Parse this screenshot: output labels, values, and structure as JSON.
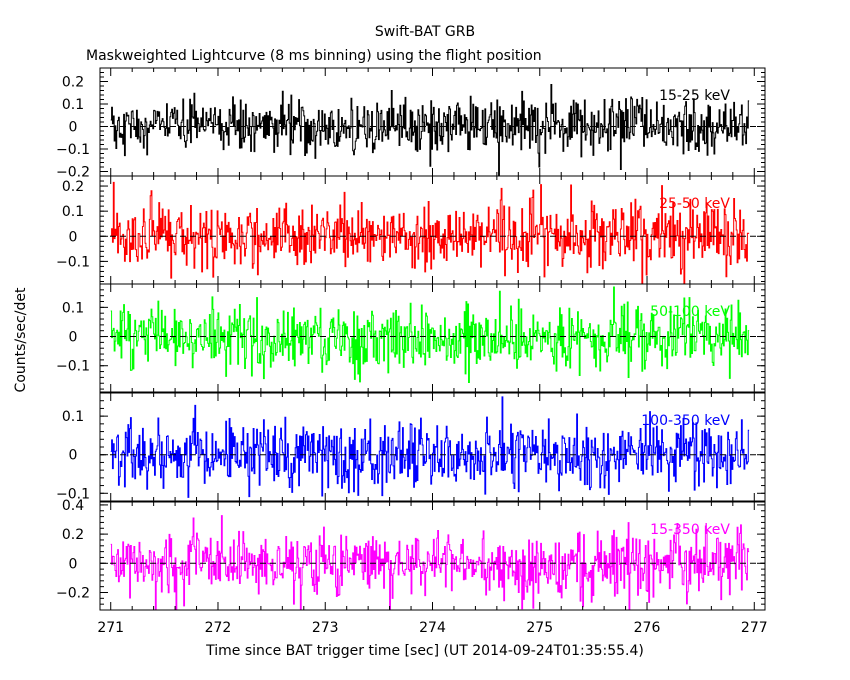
{
  "title": "Swift-BAT GRB",
  "subtitle": "Maskweighted Lightcurve (8 ms binning) using the flight position",
  "ylabel": "Counts/sec/det",
  "xlabel": "Time since BAT trigger time [sec] (UT 2014-09-24T01:35:55.4)",
  "chart_data": {
    "type": "line",
    "title": "Swift-BAT GRB",
    "subtitle": "Maskweighted Lightcurve (8 ms binning) using the flight position",
    "xlabel": "Time since BAT trigger time [sec] (UT 2014-09-24T01:35:55.4)",
    "ylabel": "Counts/sec/det",
    "xlim": [
      270.9,
      277.1
    ],
    "xticks": [
      271,
      272,
      273,
      274,
      275,
      276,
      277
    ],
    "x_start": 271.0,
    "x_end": 276.95,
    "bin_size": 0.008,
    "grid": false,
    "panels": [
      {
        "name": "15-25 keV",
        "color": "#000000",
        "ylim": [
          -0.22,
          0.26
        ],
        "yticks": [
          -0.2,
          -0.1,
          0,
          0.1,
          0.2
        ],
        "ytick_labels": [
          "−0.2",
          "−0.1",
          "0",
          "0.1",
          "0.2"
        ],
        "noise_sigma": 0.06,
        "zero_line": true
      },
      {
        "name": "25-50 keV",
        "color": "#ff0000",
        "ylim": [
          -0.19,
          0.24
        ],
        "yticks": [
          -0.1,
          0,
          0.1,
          0.2
        ],
        "ytick_labels": [
          "−0.1",
          "0",
          "0.1",
          "0.2"
        ],
        "noise_sigma": 0.065,
        "zero_line": true
      },
      {
        "name": "50-100 keV",
        "color": "#00ff00",
        "ylim": [
          -0.19,
          0.18
        ],
        "yticks": [
          -0.1,
          0,
          0.1
        ],
        "ytick_labels": [
          "−0.1",
          "0",
          "0.1"
        ],
        "noise_sigma": 0.055,
        "zero_line": true
      },
      {
        "name": "100-350 keV",
        "color": "#0000ff",
        "ylim": [
          -0.12,
          0.16
        ],
        "yticks": [
          -0.1,
          0,
          0.1
        ],
        "ytick_labels": [
          "−0.1",
          "0",
          "0.1"
        ],
        "noise_sigma": 0.045,
        "zero_line": true
      },
      {
        "name": "15-350 keV",
        "color": "#ff00ff",
        "ylim": [
          -0.32,
          0.42
        ],
        "yticks": [
          -0.2,
          0,
          0.2,
          0.4
        ],
        "ytick_labels": [
          "−0.2",
          "0",
          "0.2",
          "0.4"
        ],
        "noise_sigma": 0.11,
        "zero_line": true
      }
    ]
  }
}
